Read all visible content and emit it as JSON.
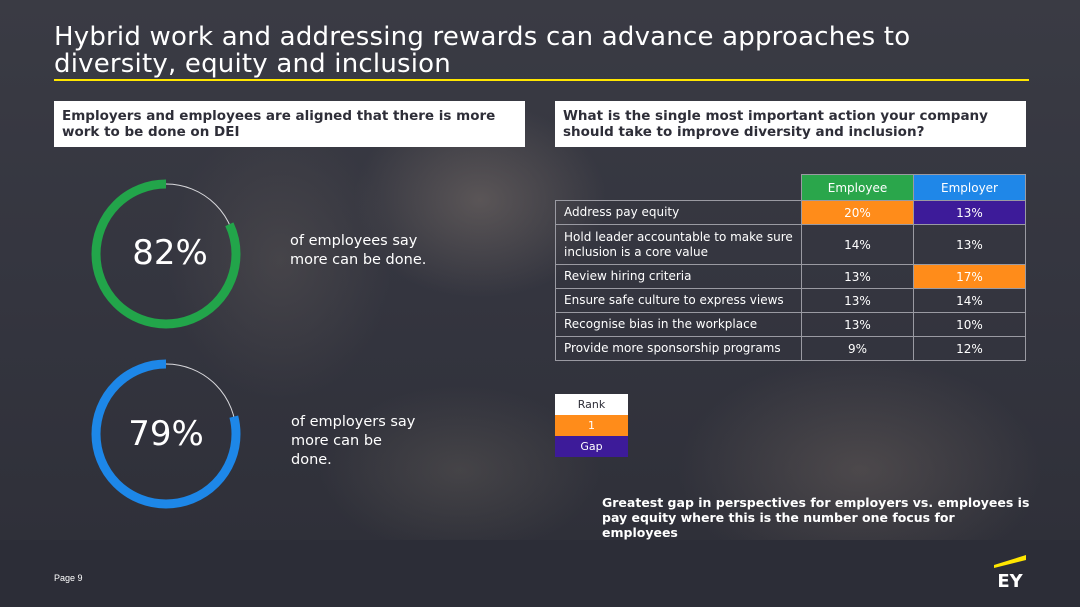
{
  "title": "Hybrid work and addressing rewards can advance approaches to diversity, equity and inclusion",
  "left_panel": {
    "heading": "Employers and employees are aligned that there is more work to be done on DEI",
    "stats": [
      {
        "value": "82%",
        "fraction": 0.82,
        "color": "#22a54a",
        "text": "of employees say more can be done."
      },
      {
        "value": "79%",
        "fraction": 0.79,
        "color": "#1d87e8",
        "text": "of employers say more can be done."
      }
    ]
  },
  "right_panel": {
    "heading": "What is the single most important action your company should take to improve diversity and inclusion?",
    "columns": [
      "Employee",
      "Employer"
    ],
    "rows": [
      {
        "label": "Address pay equity",
        "employee": "20%",
        "employer": "13%"
      },
      {
        "label": "Hold leader accountable to make sure inclusion is a core value",
        "employee": "14%",
        "employer": "13%"
      },
      {
        "label": "Review hiring criteria",
        "employee": "13%",
        "employer": "17%"
      },
      {
        "label": "Ensure safe culture to express views",
        "employee": "13%",
        "employer": "14%"
      },
      {
        "label": "Recognise bias in the workplace",
        "employee": "13%",
        "employer": "10%"
      },
      {
        "label": "Provide more sponsorship programs",
        "employee": "9%",
        "employer": "12%"
      }
    ],
    "legend": {
      "rank": "Rank",
      "one": "1",
      "gap": "Gap"
    },
    "note": "Greatest gap in perspectives for employers vs. employees is pay equity where this is the number one focus for employees"
  },
  "colors": {
    "accent": "#ffe600",
    "rank_one": "#ff8c1a",
    "gap": "#3d1b99",
    "employee_header": "#2aa64b",
    "employer_header": "#1f87e8"
  },
  "footer": {
    "page": "Page 9",
    "logo_text": "EY"
  }
}
